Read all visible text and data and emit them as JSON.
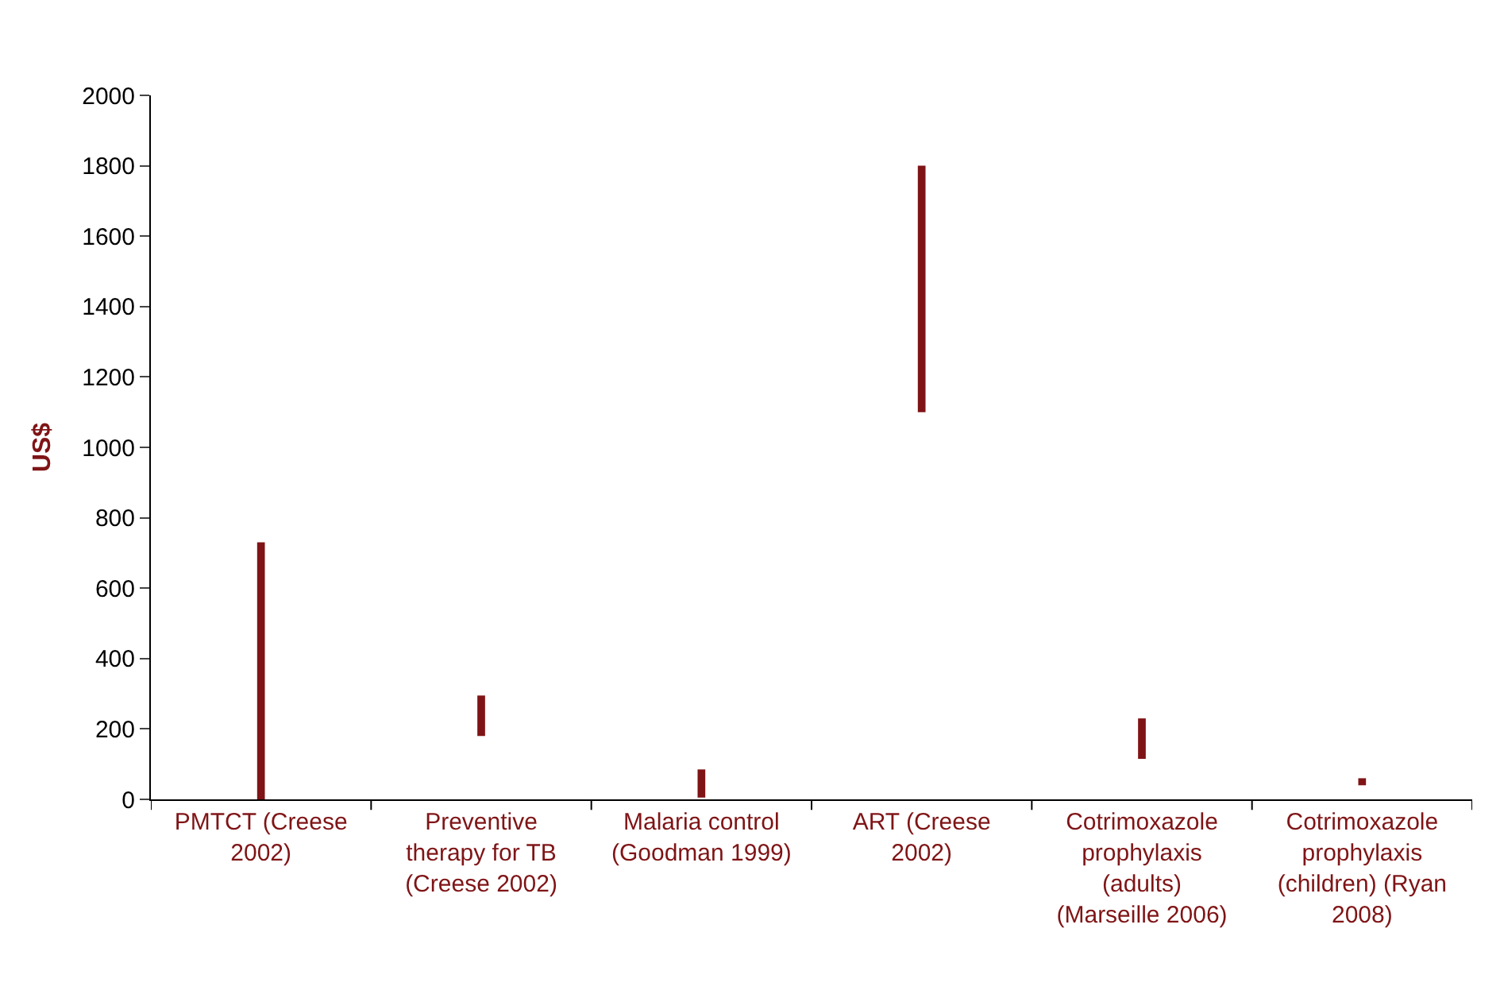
{
  "chart_data": {
    "type": "bar",
    "ylabel": "US$",
    "categories": [
      "PMTCT (Creese 2002)",
      "Preventive therapy for TB (Creese 2002)",
      "Malaria control (Goodman 1999)",
      "ART (Creese 2002)",
      "Cotrimoxazole prophylaxis (adults) (Marseille 2006)",
      "Cotrimoxazole prophylaxis (children) (Ryan 2008)"
    ],
    "base": [
      0,
      180,
      5,
      1100,
      115,
      40
    ],
    "values": [
      730,
      115,
      80,
      700,
      115,
      20
    ],
    "color": "#7f1416",
    "ylim": [
      0,
      2000
    ],
    "yticks": [
      0,
      200,
      400,
      600,
      800,
      1000,
      1200,
      1400,
      1600,
      1800,
      2000
    ],
    "legend": false
  }
}
